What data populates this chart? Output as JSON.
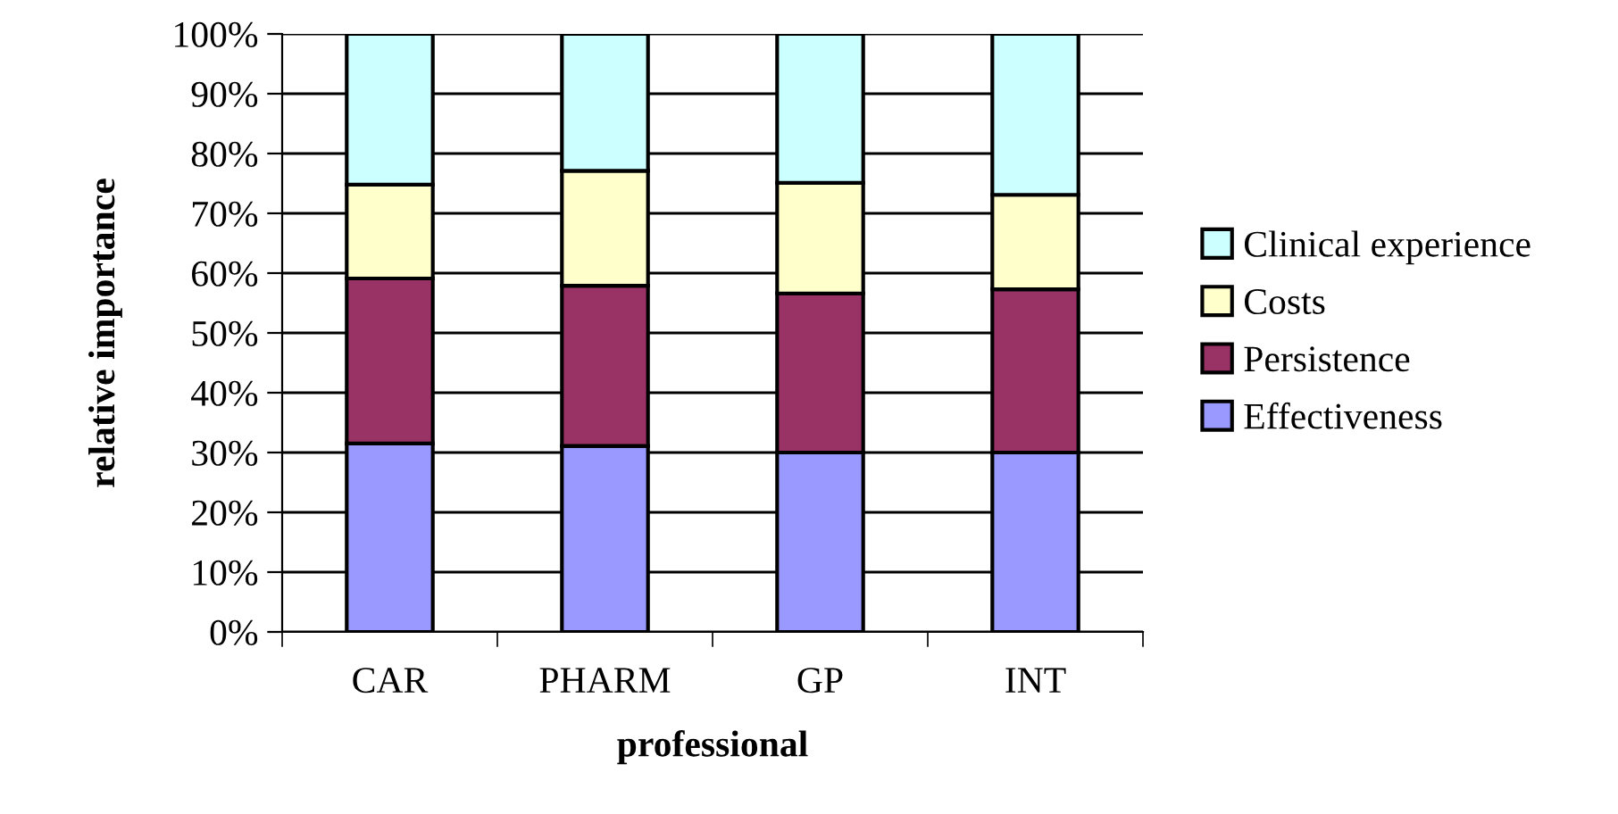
{
  "chart_data": {
    "type": "bar",
    "stacked": true,
    "xlabel": "professional",
    "ylabel": "relative importance",
    "categories": [
      "CAR",
      "PHARM",
      "GP",
      "INT"
    ],
    "series": [
      {
        "name": "Effectiveness",
        "color": "#9999ff",
        "values": [
          31.5,
          31.1,
          30.0,
          30.0
        ]
      },
      {
        "name": "Persistence",
        "color": "#993366",
        "values": [
          27.6,
          26.8,
          26.6,
          27.3
        ]
      },
      {
        "name": "Costs",
        "color": "#ffffcc",
        "values": [
          15.7,
          19.2,
          18.5,
          15.8
        ]
      },
      {
        "name": "Clinical experience",
        "color": "#ccffff",
        "values": [
          25.2,
          22.9,
          24.9,
          26.9
        ]
      }
    ],
    "ylim": [
      0,
      100
    ],
    "yticks": [
      {
        "value": 0,
        "label": "0%"
      },
      {
        "value": 10,
        "label": "10%"
      },
      {
        "value": 20,
        "label": "20%"
      },
      {
        "value": 30,
        "label": "30%"
      },
      {
        "value": 40,
        "label": "40%"
      },
      {
        "value": 50,
        "label": "50%"
      },
      {
        "value": 60,
        "label": "60%"
      },
      {
        "value": 70,
        "label": "70%"
      },
      {
        "value": 80,
        "label": "80%"
      },
      {
        "value": 90,
        "label": "90%"
      },
      {
        "value": 100,
        "label": "100%"
      }
    ],
    "grid": "y",
    "legend": "right"
  }
}
